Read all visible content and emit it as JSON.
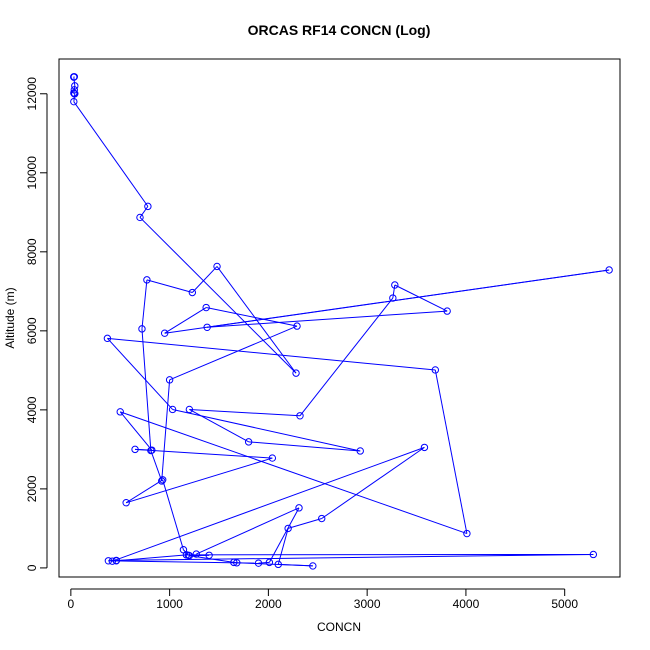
{
  "chart_data": {
    "type": "scatter",
    "title": "ORCAS RF14 CONCN (Log)",
    "xlabel": "CONCN",
    "ylabel": "Altitude (m)",
    "xlim": [
      -120,
      5560
    ],
    "ylim": [
      -230,
      12880
    ],
    "xticks": [
      0,
      1000,
      2000,
      3000,
      4000,
      5000
    ],
    "yticks": [
      0,
      2000,
      4000,
      6000,
      8000,
      10000,
      12000
    ],
    "xtick_labels": [
      "0",
      "1000",
      "2000",
      "3000",
      "4000",
      "5000"
    ],
    "ytick_labels": [
      "0",
      "2000",
      "4000",
      "6000",
      "8000",
      "10000",
      "12000"
    ],
    "series_color": "#0000ff",
    "connected": true,
    "marker": "open-circle",
    "series": [
      {
        "x": [
          30,
          35,
          30,
          40,
          35,
          30,
          35,
          40,
          30,
          780,
          700,
          2280,
          1480,
          1230,
          770,
          720,
          810,
          920,
          1000,
          2290,
          1370,
          950,
          5450,
          1380,
          3810,
          3280,
          3260,
          2320,
          1200,
          1800,
          2930,
          1030,
          370,
          3690,
          4010,
          500,
          820,
          650,
          2040,
          560,
          930,
          1140,
          1190,
          1400,
          1200,
          1650,
          1680,
          2450,
          2100,
          2200,
          2540,
          3580,
          420,
          460,
          1170,
          5290,
          460,
          380,
          1900,
          2010,
          2310,
          1270
        ],
        "y": [
          12430,
          12430,
          12420,
          12200,
          12100,
          12020,
          12000,
          12000,
          11800,
          9150,
          8870,
          4930,
          7630,
          6970,
          7290,
          6050,
          2970,
          2200,
          4760,
          6120,
          6590,
          5940,
          7540,
          6090,
          6500,
          7160,
          6830,
          3850,
          4010,
          3190,
          2960,
          4010,
          5810,
          5010,
          870,
          3950,
          2980,
          3000,
          2780,
          1650,
          2230,
          460,
          320,
          320,
          310,
          140,
          130,
          50,
          90,
          1000,
          1250,
          3050,
          170,
          180,
          330,
          340,
          190,
          180,
          120,
          140,
          1520,
          350
        ]
      }
    ]
  }
}
